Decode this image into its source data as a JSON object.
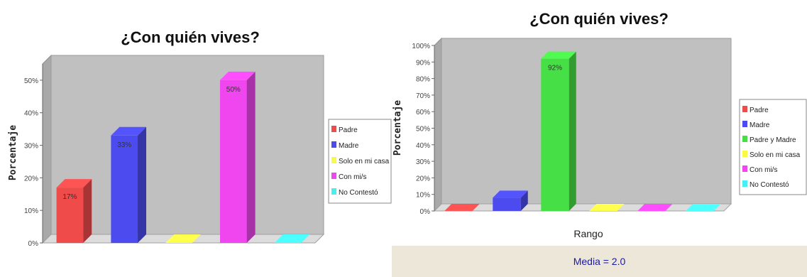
{
  "colors": {
    "background": "#ffffff",
    "plot_area": "#c0c0c0",
    "footer": "#ece7d8",
    "padre": "#ef4b4b",
    "madre": "#4b4bef",
    "padre_y_madre": "#46e046",
    "solo_en_mi_casa": "#fafa46",
    "con_mi_s": "#ef46ef",
    "no_contesto": "#46f0f0"
  },
  "chart_data": [
    {
      "type": "bar",
      "title": "¿Con quién vives?",
      "ylabel": "Porcentaje",
      "xlabel": "",
      "ylim": [
        0,
        55
      ],
      "yticks": [
        0,
        10,
        20,
        30,
        40,
        50
      ],
      "categories": [
        "Padre",
        "Madre",
        "Solo en mi casa",
        "Con mi/s",
        "No Contestó"
      ],
      "values": [
        17,
        33,
        0,
        50,
        0
      ],
      "data_labels": [
        "17%",
        "33%",
        "",
        "50%",
        ""
      ],
      "legend": [
        "Padre",
        "Madre",
        "Solo en mi casa",
        "Con mi/s",
        "No Contestó"
      ],
      "legend_position": "right",
      "grid": false
    },
    {
      "type": "bar",
      "title": "¿Con quién vives?",
      "ylabel": "Porcentaje",
      "xlabel": "Rango",
      "ylim": [
        0,
        100
      ],
      "yticks": [
        0,
        10,
        20,
        30,
        40,
        50,
        60,
        70,
        80,
        90,
        100
      ],
      "categories": [
        "Padre",
        "Madre",
        "Padre y Madre",
        "Solo en mi casa",
        "Con mi/s",
        "No Contestó"
      ],
      "values": [
        0,
        8,
        92,
        0,
        0,
        0
      ],
      "data_labels": [
        "",
        "",
        "92%",
        "",
        "",
        ""
      ],
      "legend": [
        "Padre",
        "Madre",
        "Padre y Madre",
        "Solo en mi casa",
        "Con mi/s",
        "No Contestó"
      ],
      "legend_position": "right",
      "grid": false,
      "footer": "Media = 2.0"
    }
  ]
}
